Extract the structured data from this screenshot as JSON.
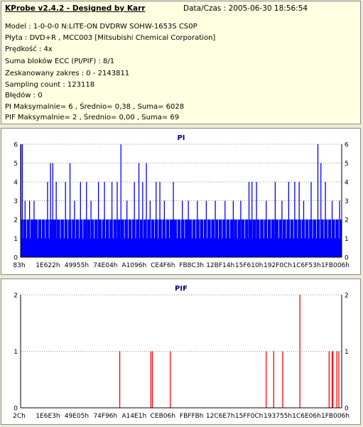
{
  "header": {
    "app_title": "KProbe v2.4.2 - Designed by Karr",
    "datetime": "Data/Czas : 2005-06-30 18:56:54"
  },
  "info_lines": [
    "Model : 1-0-0-0 N:LITE-ON DVDRW SOHW-1653S CS0P",
    "Płyta : DVD+R , MCC003 [Mitsubishi Chemical Corporation]",
    "Prędkość : 4x",
    "Suma bloków ECC (PI/PIF) : 8/1",
    "Zeskanowany zakres : 0 - 2143811",
    "Sampling count : 123118",
    "Błędów : 0",
    "PI Maksymalnie= 6 , Średnio= 0,38 , Suma= 6028",
    "PIF Maksymalnie= 2 , Średnio= 0,00 , Suma= 69"
  ],
  "colors": {
    "pi_bars": "#0000ff",
    "pif_bars": "#ff0000",
    "axis": "#000000",
    "grid": "#999999",
    "title": "#000080"
  },
  "chart_data": [
    {
      "type": "bar",
      "title": "PI",
      "ylim": [
        0,
        6
      ],
      "yticks": [
        0,
        1,
        2,
        3,
        4,
        5,
        6
      ],
      "dual_y_axis": true,
      "grid": "horizontal dotted at each integer level",
      "xlim": [
        131,
        2143811
      ],
      "xtick_labels": [
        "83h",
        "1E622h",
        "49955h",
        "74E04h",
        "A1096h",
        "CE4F6h",
        "FB8C3h",
        "12BF14h",
        "15F610h",
        "192F0Ch",
        "1C6F53h",
        "1FB006h"
      ],
      "baseline_level": 2,
      "baseline_note": "dense solid band up to 2 errors across the whole range, individual dips to 1",
      "series": [
        {
          "values": [
            [
              2800,
              6
            ],
            [
              12000,
              6
            ],
            [
              30000,
              3
            ],
            [
              60000,
              3
            ],
            [
              90000,
              3
            ],
            [
              180000,
              4
            ],
            [
              200000,
              5
            ],
            [
              215000,
              5
            ],
            [
              238000,
              4
            ],
            [
              300000,
              4
            ],
            [
              330000,
              5
            ],
            [
              360000,
              3
            ],
            [
              400000,
              4
            ],
            [
              440000,
              4
            ],
            [
              470000,
              3
            ],
            [
              520000,
              4
            ],
            [
              560000,
              4
            ],
            [
              610000,
              4
            ],
            [
              645000,
              4
            ],
            [
              670000,
              6
            ],
            [
              710000,
              3
            ],
            [
              760000,
              4
            ],
            [
              790000,
              5
            ],
            [
              815000,
              4
            ],
            [
              840000,
              5
            ],
            [
              865000,
              3
            ],
            [
              905000,
              4
            ],
            [
              930000,
              4
            ],
            [
              960000,
              3
            ],
            [
              1020000,
              4
            ],
            [
              1080000,
              3
            ],
            [
              1120000,
              3
            ],
            [
              1180000,
              3
            ],
            [
              1240000,
              3
            ],
            [
              1300000,
              3
            ],
            [
              1365000,
              3
            ],
            [
              1420000,
              3
            ],
            [
              1470000,
              3
            ],
            [
              1525000,
              4
            ],
            [
              1545000,
              4
            ],
            [
              1575000,
              4
            ],
            [
              1640000,
              3
            ],
            [
              1700000,
              4
            ],
            [
              1745000,
              3
            ],
            [
              1790000,
              4
            ],
            [
              1830000,
              4
            ],
            [
              1860000,
              4
            ],
            [
              1890000,
              3
            ],
            [
              1940000,
              4
            ],
            [
              1985000,
              6
            ],
            [
              2005000,
              5
            ],
            [
              2035000,
              4
            ],
            [
              2080000,
              3
            ],
            [
              2130000,
              3
            ]
          ]
        }
      ]
    },
    {
      "type": "bar",
      "title": "PIF",
      "ylim": [
        0,
        2
      ],
      "yticks": [
        0,
        1,
        2
      ],
      "dual_y_axis": true,
      "grid": "horizontal dotted at each integer level",
      "xlim": [
        44,
        2143811
      ],
      "xtick_labels": [
        "2Ch",
        "1E6E3h",
        "49E05h",
        "74F96h",
        "A14E1h",
        "CEB06h",
        "FBFFBh",
        "12C6E7h",
        "15FF0Ch",
        "193755h",
        "1C6E06h",
        "1FB006h"
      ],
      "series": [
        {
          "values": [
            [
              662000,
              1
            ],
            [
              870000,
              1
            ],
            [
              880000,
              1
            ],
            [
              1000000,
              1
            ],
            [
              1640000,
              1
            ],
            [
              1690000,
              1
            ],
            [
              1750000,
              1
            ],
            [
              1865000,
              2
            ],
            [
              2060000,
              1
            ],
            [
              2080000,
              1
            ],
            [
              2085000,
              1
            ],
            [
              2112000,
              1
            ],
            [
              2125000,
              1
            ]
          ]
        }
      ]
    }
  ]
}
